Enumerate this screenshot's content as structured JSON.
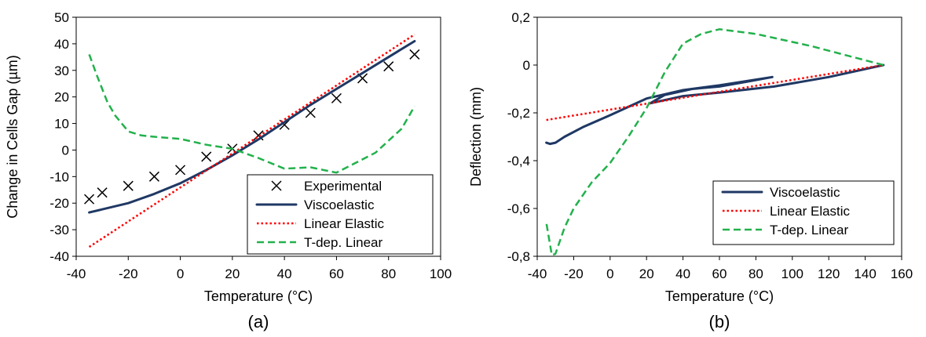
{
  "chart_data": [
    {
      "type": "line",
      "caption": "(a)",
      "xlabel": "Temperature (°C)",
      "ylabel": "Change in Cells Gap (µm)",
      "xlim": [
        -40,
        100
      ],
      "ylim": [
        -40,
        50
      ],
      "xticks": [
        -40,
        -20,
        0,
        20,
        40,
        60,
        80,
        100
      ],
      "yticks": [
        -40,
        -30,
        -20,
        -10,
        0,
        10,
        20,
        30,
        40,
        50
      ],
      "xtick_labels": [
        "-40",
        "-20",
        "0",
        "20",
        "40",
        "60",
        "80",
        "100"
      ],
      "ytick_labels": [
        "-40",
        "-30",
        "-20",
        "-10",
        "0",
        "10",
        "20",
        "30",
        "40",
        "50"
      ],
      "grid": false,
      "legend_position": "bottom-right",
      "series": [
        {
          "name": "Experimental",
          "style": "marker-x",
          "color": "#000000",
          "points": [
            [
              -35,
              -18.5
            ],
            [
              -30,
              -16
            ],
            [
              -20,
              -13.5
            ],
            [
              -10,
              -10
            ],
            [
              0,
              -7.5
            ],
            [
              10,
              -2.5
            ],
            [
              20,
              0.5
            ],
            [
              30,
              5.5
            ],
            [
              40,
              9.5
            ],
            [
              50,
              14
            ],
            [
              60,
              19.5
            ],
            [
              70,
              27
            ],
            [
              80,
              31.5
            ],
            [
              90,
              36
            ]
          ]
        },
        {
          "name": "Viscoelastic",
          "style": "solid",
          "color": "#1f3864",
          "points": [
            [
              -35,
              -23.5
            ],
            [
              -20,
              -20
            ],
            [
              -10,
              -16.5
            ],
            [
              0,
              -12.5
            ],
            [
              10,
              -7.5
            ],
            [
              20,
              -2
            ],
            [
              30,
              4
            ],
            [
              40,
              10.5
            ],
            [
              50,
              17
            ],
            [
              60,
              23
            ],
            [
              70,
              29
            ],
            [
              80,
              35
            ],
            [
              90,
              41
            ]
          ]
        },
        {
          "name": "Linear Elastic",
          "style": "dotted",
          "color": "#ff0000",
          "points": [
            [
              -35,
              -36.5
            ],
            [
              90,
              43.5
            ]
          ]
        },
        {
          "name": "T-dep. Linear",
          "style": "dashed",
          "color": "#22b14c",
          "points": [
            [
              -35,
              36
            ],
            [
              -32,
              28
            ],
            [
              -28,
              18
            ],
            [
              -25,
              13
            ],
            [
              -20,
              7
            ],
            [
              -15,
              5.5
            ],
            [
              -10,
              5
            ],
            [
              0,
              4.2
            ],
            [
              10,
              2
            ],
            [
              20,
              0.5
            ],
            [
              30,
              -3
            ],
            [
              40,
              -7
            ],
            [
              50,
              -6.5
            ],
            [
              60,
              -8.5
            ],
            [
              65,
              -6
            ],
            [
              75,
              -1
            ],
            [
              85,
              8
            ],
            [
              90,
              16.5
            ]
          ]
        }
      ]
    },
    {
      "type": "line",
      "caption": "(b)",
      "xlabel": "Temperature (°C)",
      "ylabel": "Deflection (mm)",
      "xlim": [
        -40,
        160
      ],
      "ylim": [
        -0.8,
        0.2
      ],
      "xticks": [
        -40,
        -20,
        0,
        20,
        40,
        60,
        80,
        100,
        120,
        140,
        160
      ],
      "yticks": [
        -0.8,
        -0.6,
        -0.4,
        -0.2,
        0,
        0.2
      ],
      "xtick_labels": [
        "-40",
        "-20",
        "0",
        "20",
        "40",
        "60",
        "80",
        "100",
        "120",
        "140",
        "160"
      ],
      "ytick_labels": [
        "-0,8",
        "-0,6",
        "-0,4",
        "-0,2",
        "0",
        "0,2"
      ],
      "grid": false,
      "legend_position": "bottom-right",
      "series": [
        {
          "name": "Viscoelastic",
          "style": "solid",
          "color": "#1f3864",
          "points": [
            [
              150,
              0
            ],
            [
              120,
              -0.05
            ],
            [
              90,
              -0.09
            ],
            [
              60,
              -0.115
            ],
            [
              40,
              -0.13
            ],
            [
              22,
              -0.16
            ],
            [
              30,
              -0.125
            ],
            [
              45,
              -0.1
            ],
            [
              60,
              -0.09
            ],
            [
              75,
              -0.07
            ],
            [
              89,
              -0.05
            ],
            [
              60,
              -0.085
            ],
            [
              40,
              -0.105
            ],
            [
              20,
              -0.14
            ],
            [
              0,
              -0.21
            ],
            [
              -15,
              -0.26
            ],
            [
              -25,
              -0.3
            ],
            [
              -30,
              -0.325
            ],
            [
              -33,
              -0.33
            ],
            [
              -35,
              -0.325
            ]
          ]
        },
        {
          "name": "Linear Elastic",
          "style": "dotted",
          "color": "#ff0000",
          "points": [
            [
              -35,
              -0.23
            ],
            [
              150,
              0
            ]
          ]
        },
        {
          "name": "T-dep. Linear",
          "style": "dashed",
          "color": "#22b14c",
          "points": [
            [
              150,
              0
            ],
            [
              110,
              0.08
            ],
            [
              80,
              0.13
            ],
            [
              60,
              0.15
            ],
            [
              50,
              0.13
            ],
            [
              40,
              0.09
            ],
            [
              30,
              -0.03
            ],
            [
              20,
              -0.18
            ],
            [
              10,
              -0.3
            ],
            [
              0,
              -0.41
            ],
            [
              -10,
              -0.49
            ],
            [
              -20,
              -0.6
            ],
            [
              -25,
              -0.68
            ],
            [
              -30,
              -0.79
            ],
            [
              -32,
              -0.795
            ],
            [
              -35,
              -0.66
            ]
          ]
        }
      ]
    }
  ]
}
